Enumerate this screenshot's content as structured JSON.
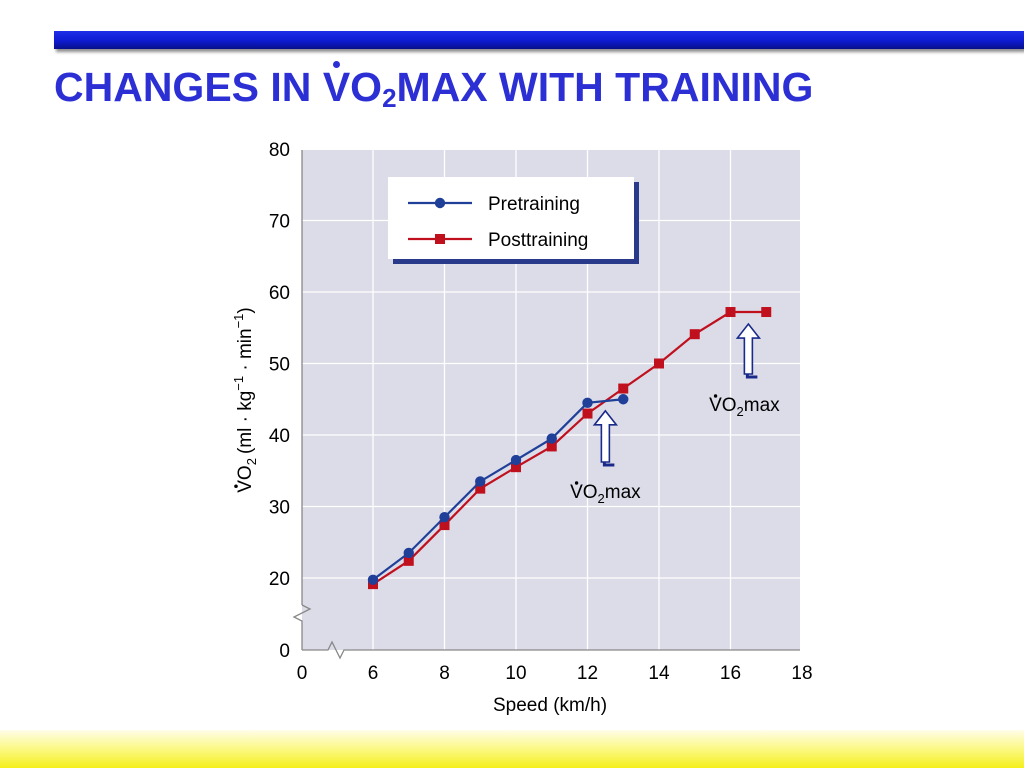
{
  "slide": {
    "title_prefix": "CHANGES IN ",
    "title_v": "V",
    "title_o": "O",
    "title_sub": "2",
    "title_suffix": "MAX WITH TRAINING"
  },
  "colors": {
    "title": "#2b2fd4",
    "top_bar": "#0d1bd0",
    "plot_background": "#dcdce8",
    "pretraining": "#1f3f98",
    "posttraining": "#c0101e",
    "bottom_band": "#f4ef1a"
  },
  "chart_data": {
    "type": "line",
    "xlabel": "Speed (km/h)",
    "ylabel_prefix": "V",
    "ylabel_o": "O",
    "ylabel_sub": "2",
    "ylabel_units": "(ml · kg",
    "ylabel_exp1": "−1",
    "ylabel_mid": " · min",
    "ylabel_exp2": "−1",
    "ylabel_close": ")",
    "xlim": [
      0,
      18
    ],
    "ylim": [
      0,
      80
    ],
    "axis_breaks": true,
    "x_ticks": [
      "0",
      "6",
      "8",
      "10",
      "12",
      "14",
      "16",
      "18"
    ],
    "y_ticks": [
      "0",
      "20",
      "30",
      "40",
      "50",
      "60",
      "70",
      "80"
    ],
    "grid": true,
    "legend_position": "top-left",
    "series": [
      {
        "name": "Pretraining",
        "marker": "circle",
        "x": [
          6,
          7,
          8,
          9,
          10,
          11,
          12,
          13
        ],
        "y": [
          19.5,
          23.5,
          28.5,
          33.5,
          36.5,
          39.5,
          44.5,
          45
        ]
      },
      {
        "name": "Posttraining",
        "marker": "square",
        "x": [
          6,
          7,
          8,
          9,
          10,
          11,
          12,
          13,
          14,
          15,
          16,
          17
        ],
        "y": [
          18.3,
          22.4,
          27.4,
          32.5,
          35.5,
          38.4,
          43,
          46.5,
          50,
          54.1,
          57.2,
          57.2
        ]
      }
    ],
    "annotations": [
      {
        "label_v": "V",
        "label_o": "O",
        "label_sub": "2",
        "label_rest": "max",
        "x": 12.5,
        "y": 44.5
      },
      {
        "label_v": "V",
        "label_o": "O",
        "label_sub": "2",
        "label_rest": "max",
        "x": 16.5,
        "y": 57.2
      }
    ]
  }
}
